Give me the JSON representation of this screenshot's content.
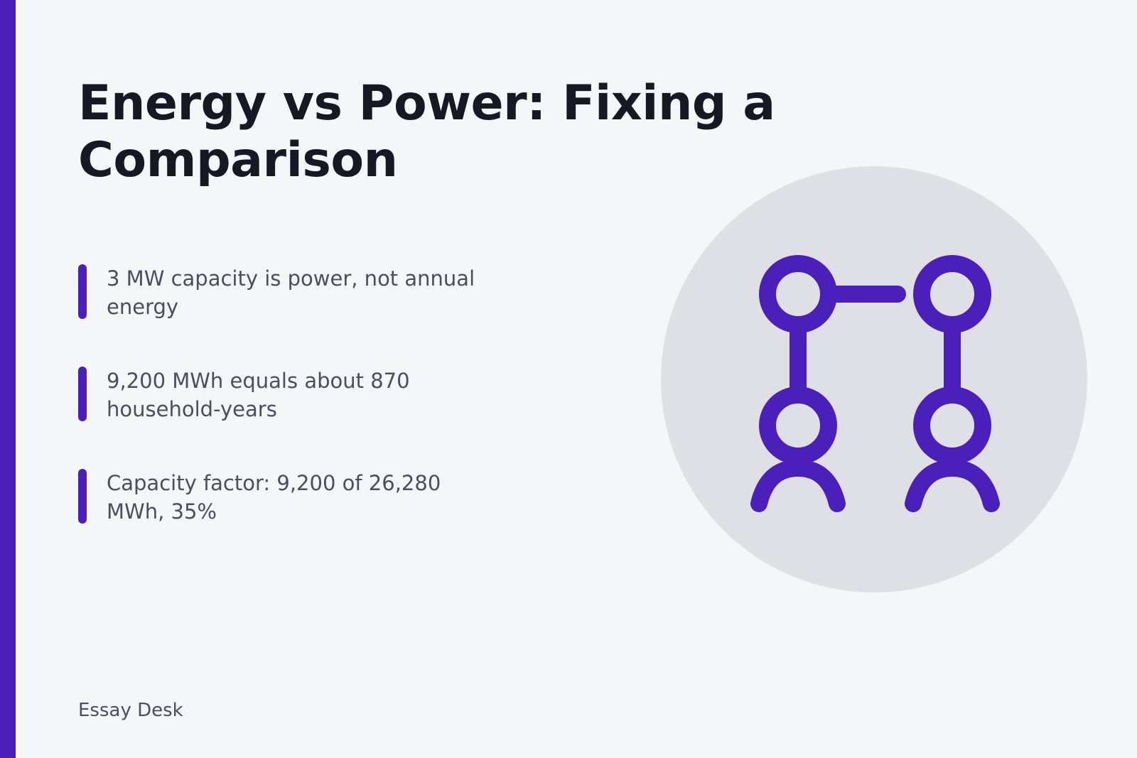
{
  "colors": {
    "accent": "#4b1fba",
    "background": "#f4f6f8",
    "circle": "#dfe0e6",
    "title": "#151924",
    "body_text": "#4a4f60"
  },
  "title": "Energy vs Power: Fixing a Comparison",
  "points": [
    {
      "text": "3 MW capacity is power, not annual energy"
    },
    {
      "text": "9,200 MWh equals about 870 household-years"
    },
    {
      "text": "Capacity factor: 9,200 of 26,280 MWh, 35%"
    }
  ],
  "illustration": {
    "icon": "connected-people-icon"
  },
  "footer": "Essay Desk"
}
